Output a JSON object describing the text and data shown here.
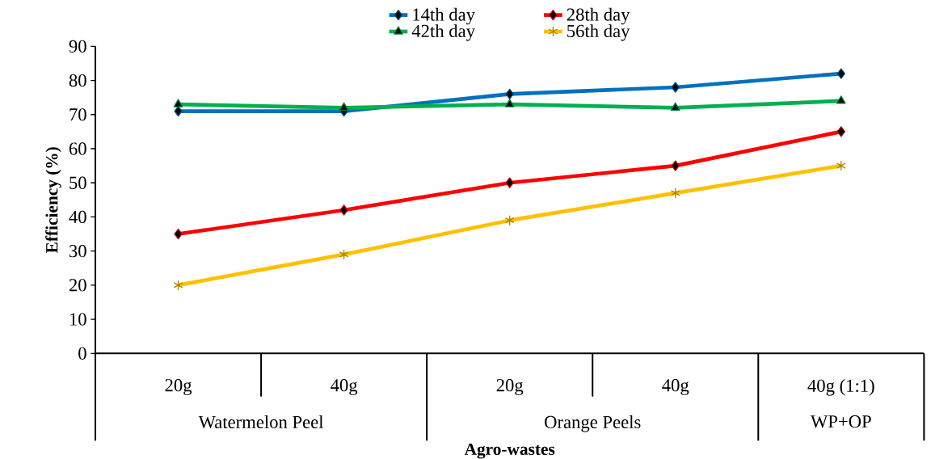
{
  "chart_data": {
    "type": "line",
    "xlabel": "Agro-wastes",
    "ylabel": "Efficiency (%)",
    "categories": [
      "20g",
      "40g",
      "20g",
      "40g",
      "40g (1:1)"
    ],
    "annotations": [
      "Watermelon Peel",
      "Orange Peels",
      "WP+OP"
    ],
    "ylim": [
      0,
      90
    ],
    "yticks": [
      0,
      10,
      20,
      30,
      40,
      50,
      60,
      70,
      80,
      90
    ],
    "legend": "top",
    "grid": false,
    "series": [
      {
        "name": "14th day",
        "color": "#0070c0",
        "marker": "diamond",
        "values": [
          71,
          71,
          76,
          78,
          82
        ]
      },
      {
        "name": "28th day",
        "color": "#ff0000",
        "marker": "diamond",
        "values": [
          35,
          42,
          50,
          55,
          65
        ]
      },
      {
        "name": "42th day",
        "color": "#00b050",
        "marker": "triangle",
        "values": [
          73,
          72,
          73,
          72,
          74
        ]
      },
      {
        "name": "56th day",
        "color": "#ffc000",
        "marker": "cross",
        "values": [
          20,
          29,
          39,
          47,
          55
        ]
      }
    ]
  }
}
